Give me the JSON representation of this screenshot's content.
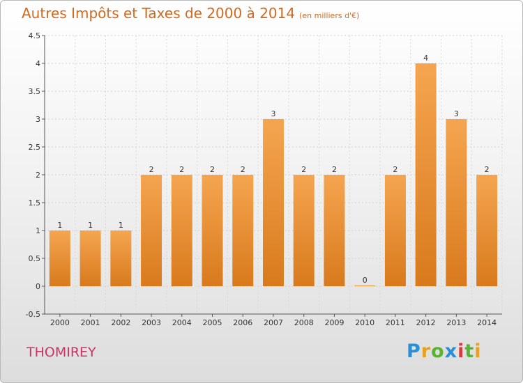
{
  "header": {
    "title": "Autres Impôts et Taxes de 2000 à 2014",
    "unit": "(en milliers d'€)"
  },
  "footer": {
    "commune": "THOMIREY",
    "brand_letters": [
      "P",
      "r",
      "o",
      "x",
      "i",
      "t",
      "i"
    ]
  },
  "colors": {
    "bar_light": "#f5a550",
    "bar_dark": "#d87a1c",
    "title": "#d2691e",
    "commune": "#cc3366"
  },
  "chart_data": {
    "type": "bar",
    "categories": [
      "2000",
      "2001",
      "2002",
      "2003",
      "2004",
      "2005",
      "2006",
      "2007",
      "2008",
      "2009",
      "2010",
      "2011",
      "2012",
      "2013",
      "2014"
    ],
    "values": [
      1,
      1,
      1,
      2,
      2,
      2,
      2,
      3,
      2,
      2,
      0,
      2,
      4,
      3,
      2
    ],
    "data_labels": [
      "1",
      "1",
      "1",
      "2",
      "2",
      "2",
      "2",
      "3",
      "2",
      "2",
      "0",
      "2",
      "4",
      "3",
      "2"
    ],
    "title": "Autres Impôts et Taxes de 2000 à 2014",
    "ylabel": "",
    "xlabel": "",
    "ylim": [
      -0.5,
      4.5
    ],
    "yticks": [
      -0.5,
      0,
      0.5,
      1,
      1.5,
      2,
      2.5,
      3,
      3.5,
      4,
      4.5
    ],
    "ytick_labels": [
      "-0.5",
      "0",
      "0.5",
      "1",
      "1.5",
      "2",
      "2.5",
      "3",
      "3.5",
      "4",
      "4.5"
    ],
    "grid": true,
    "legend": "none"
  }
}
